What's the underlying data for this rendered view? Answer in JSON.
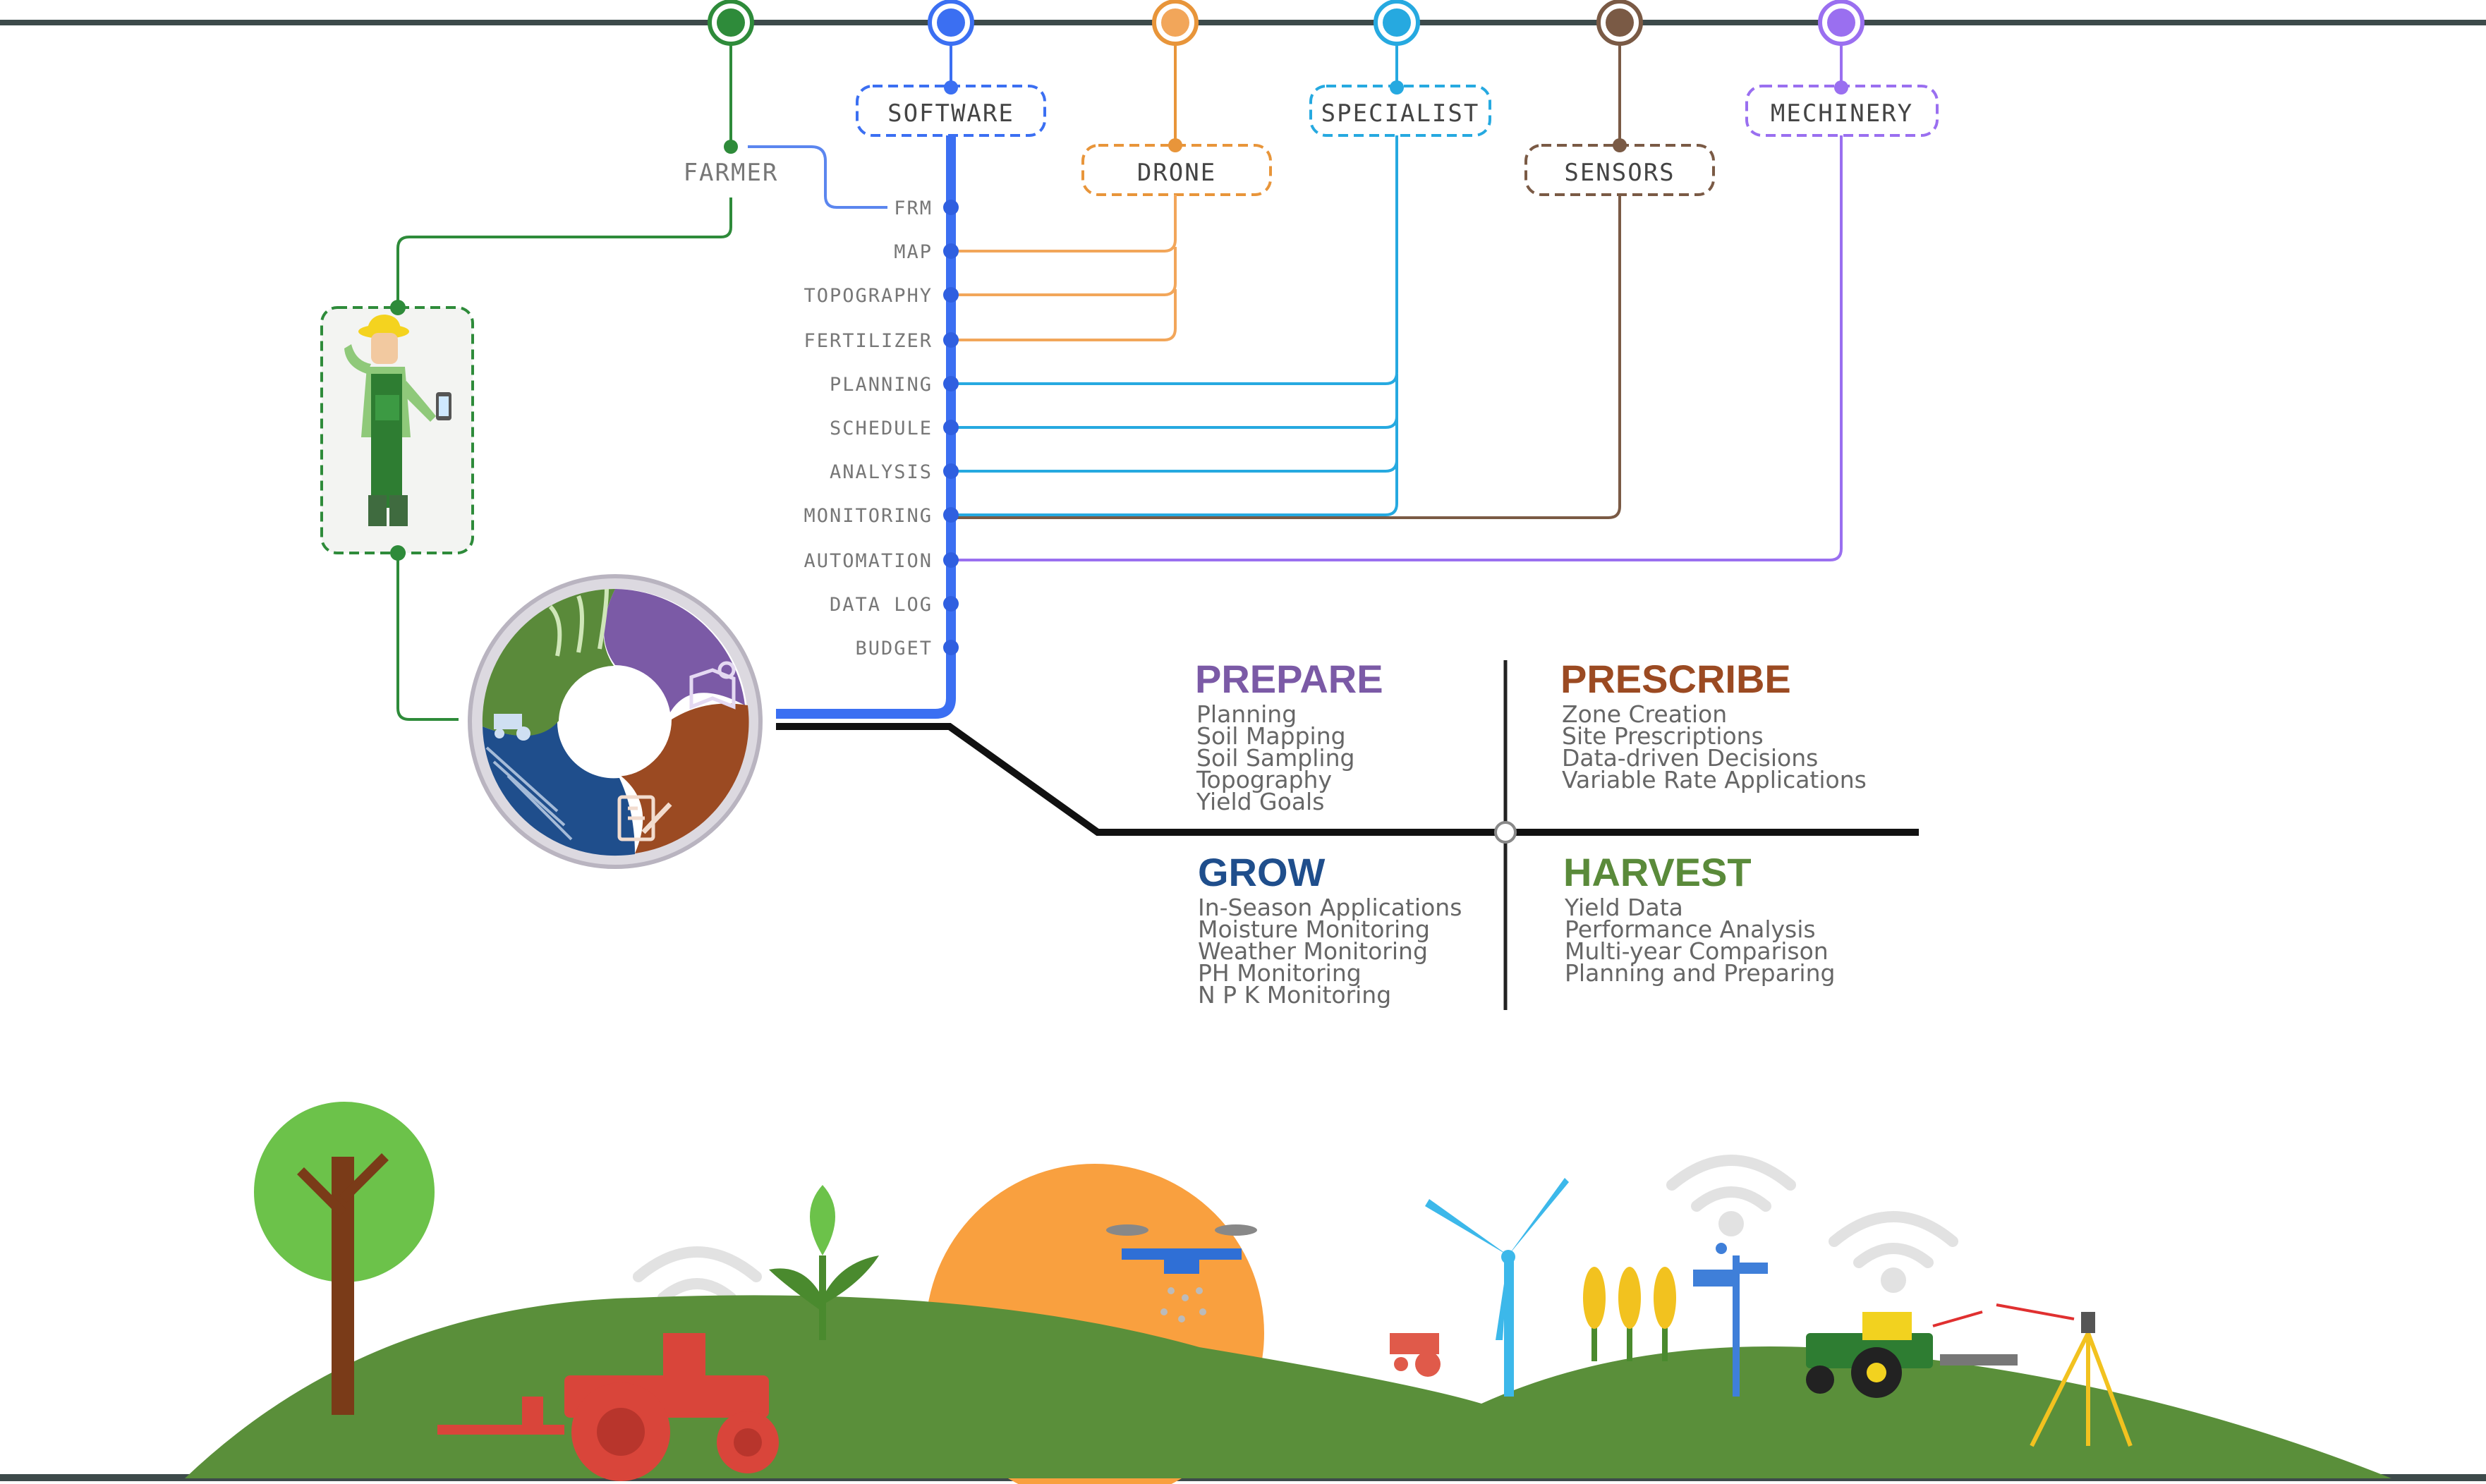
{
  "topics": [
    {
      "id": "farmer",
      "label": "FARMER",
      "color": "#2e8b3a"
    },
    {
      "id": "software",
      "label": "SOFTWARE",
      "color": "#3b6ff2"
    },
    {
      "id": "drone",
      "label": "DRONE",
      "color": "#e8953a"
    },
    {
      "id": "specialist",
      "label": "SPECIALIST",
      "color": "#26a9e0"
    },
    {
      "id": "sensors",
      "label": "SENSORS",
      "color": "#7a5a45"
    },
    {
      "id": "machinery",
      "label": "MECHINERY",
      "color": "#9a6ff0"
    }
  ],
  "software_items": [
    "FRM",
    "MAP",
    "TOPOGRAPHY",
    "FERTILIZER",
    "PLANNING",
    "SCHEDULE",
    "ANALYSIS",
    "MONITORING",
    "AUTOMATION",
    "DATA LOG",
    "BUDGET"
  ],
  "quadrants": {
    "prepare": {
      "title": "PREPARE",
      "color": "#7b5aa6",
      "items": [
        "Planning",
        "Soil Mapping",
        "Soil Sampling",
        "Topography",
        "Yield Goals"
      ]
    },
    "prescribe": {
      "title": "PRESCRIBE",
      "color": "#9b4a22",
      "items": [
        "Zone Creation",
        "Site Prescriptions",
        "Data-driven Decisions",
        "Variable Rate Applications"
      ]
    },
    "grow": {
      "title": "GROW",
      "color": "#1f4e8c",
      "items": [
        "In-Season Applications",
        "Moisture Monitoring",
        "Weather Monitoring",
        "PH Monitoring",
        "N P K Monitoring"
      ]
    },
    "harvest": {
      "title": "HARVEST",
      "color": "#5a8a3a",
      "items": [
        "Yield Data",
        "Performance Analysis",
        "Multi-year Comparison",
        "Planning and Preparing"
      ]
    }
  },
  "cycle_colors": {
    "prepare": "#7b5aa6",
    "prescribe": "#9b4a22",
    "grow": "#1f4e8c",
    "harvest": "#5a8a3a"
  },
  "text_gray": "#666666"
}
